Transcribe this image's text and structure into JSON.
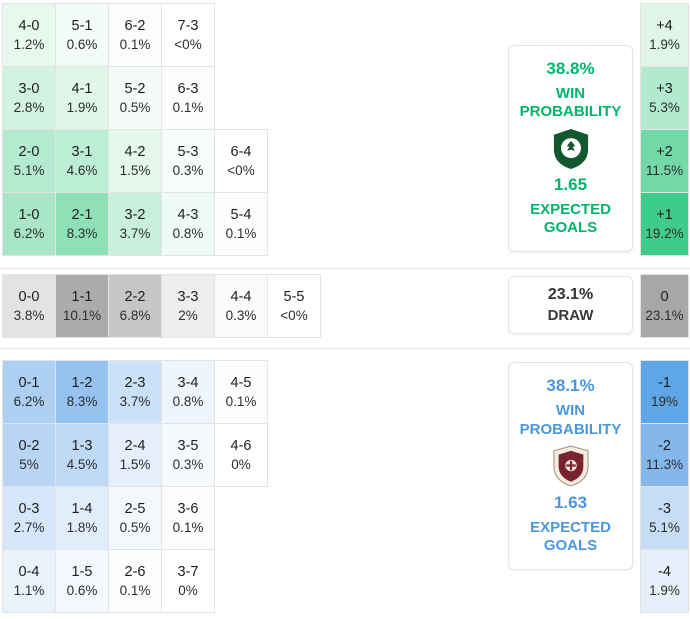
{
  "colors": {
    "home_accent": "#00b56b",
    "away_accent": "#4a97dd",
    "neutral_text": "#333333",
    "cell_border": "#e3e3e3"
  },
  "icons": {
    "home_crest": "home-team-crest",
    "away_crest": "away-team-crest"
  },
  "panels": {
    "home": {
      "win_probability": "38.8%",
      "win_label": "WIN PROBABILITY",
      "expected_goals": "1.65",
      "expected_label": "EXPECTED GOALS"
    },
    "draw": {
      "probability": "23.1%",
      "label": "DRAW"
    },
    "away": {
      "win_probability": "38.1%",
      "win_label": "WIN PROBABILITY",
      "expected_goals": "1.63",
      "expected_label": "EXPECTED GOALS"
    }
  },
  "chart_data": {
    "type": "heatmap",
    "home_win_rows": [
      [
        {
          "score": "4-0",
          "probability": "1.2%",
          "bg": "#e7f8ef"
        },
        {
          "score": "5-1",
          "probability": "0.6%",
          "bg": "#f2fbf6"
        },
        {
          "score": "6-2",
          "probability": "0.1%",
          "bg": "#fcfefd"
        },
        {
          "score": "7-3",
          "probability": "<0%",
          "bg": "#ffffff"
        }
      ],
      [
        {
          "score": "3-0",
          "probability": "2.8%",
          "bg": "#d2f2e2"
        },
        {
          "score": "4-1",
          "probability": "1.9%",
          "bg": "#dff6e9"
        },
        {
          "score": "5-2",
          "probability": "0.5%",
          "bg": "#f4fbf8"
        },
        {
          "score": "6-3",
          "probability": "0.1%",
          "bg": "#fcfefd"
        }
      ],
      [
        {
          "score": "2-0",
          "probability": "5.1%",
          "bg": "#b4ead0"
        },
        {
          "score": "3-1",
          "probability": "4.6%",
          "bg": "#bcedd5"
        },
        {
          "score": "4-2",
          "probability": "1.5%",
          "bg": "#e4f7ed"
        },
        {
          "score": "5-3",
          "probability": "0.3%",
          "bg": "#f7fdfa"
        },
        {
          "score": "6-4",
          "probability": "<0%",
          "bg": "#ffffff"
        }
      ],
      [
        {
          "score": "1-0",
          "probability": "6.2%",
          "bg": "#a9e6c8"
        },
        {
          "score": "2-1",
          "probability": "8.3%",
          "bg": "#8ee0b7"
        },
        {
          "score": "3-2",
          "probability": "3.7%",
          "bg": "#c7efdb"
        },
        {
          "score": "4-3",
          "probability": "0.8%",
          "bg": "#eefaf4"
        },
        {
          "score": "5-4",
          "probability": "0.1%",
          "bg": "#fcfefd"
        }
      ]
    ],
    "draw_row": [
      {
        "score": "0-0",
        "probability": "3.8%",
        "bg": "#e3e3e3"
      },
      {
        "score": "1-1",
        "probability": "10.1%",
        "bg": "#ababab"
      },
      {
        "score": "2-2",
        "probability": "6.8%",
        "bg": "#c6c6c6"
      },
      {
        "score": "3-3",
        "probability": "2%",
        "bg": "#eeeeee"
      },
      {
        "score": "4-4",
        "probability": "0.3%",
        "bg": "#fafafa"
      },
      {
        "score": "5-5",
        "probability": "<0%",
        "bg": "#ffffff"
      }
    ],
    "away_win_rows": [
      [
        {
          "score": "0-1",
          "probability": "6.2%",
          "bg": "#accff2"
        },
        {
          "score": "1-2",
          "probability": "8.3%",
          "bg": "#95c2ee"
        },
        {
          "score": "2-3",
          "probability": "3.7%",
          "bg": "#cbe1f7"
        },
        {
          "score": "3-4",
          "probability": "0.8%",
          "bg": "#eff5fc"
        },
        {
          "score": "4-5",
          "probability": "0.1%",
          "bg": "#fcfdfe"
        }
      ],
      [
        {
          "score": "0-2",
          "probability": "5%",
          "bg": "#b8d6f3"
        },
        {
          "score": "1-3",
          "probability": "4.5%",
          "bg": "#bedaf4"
        },
        {
          "score": "2-4",
          "probability": "1.5%",
          "bg": "#e5effb"
        },
        {
          "score": "3-5",
          "probability": "0.3%",
          "bg": "#f7fafd"
        },
        {
          "score": "4-6",
          "probability": "0%",
          "bg": "#ffffff"
        }
      ],
      [
        {
          "score": "0-3",
          "probability": "2.7%",
          "bg": "#d5e7f9"
        },
        {
          "score": "1-4",
          "probability": "1.8%",
          "bg": "#e1edfa"
        },
        {
          "score": "2-5",
          "probability": "0.5%",
          "bg": "#f4f8fd"
        },
        {
          "score": "3-6",
          "probability": "0.1%",
          "bg": "#fcfdfe"
        }
      ],
      [
        {
          "score": "0-4",
          "probability": "1.1%",
          "bg": "#eaf2fc"
        },
        {
          "score": "1-5",
          "probability": "0.6%",
          "bg": "#f2f8fd"
        },
        {
          "score": "2-6",
          "probability": "0.1%",
          "bg": "#fcfdfe"
        },
        {
          "score": "3-7",
          "probability": "0%",
          "bg": "#ffffff"
        }
      ]
    ],
    "goal_difference": [
      {
        "diff": "+4",
        "probability": "1.9%",
        "bg": "#dff6e9"
      },
      {
        "diff": "+3",
        "probability": "5.3%",
        "bg": "#b2ead0"
      },
      {
        "diff": "+2",
        "probability": "11.5%",
        "bg": "#72d8a8"
      },
      {
        "diff": "+1",
        "probability": "19.2%",
        "bg": "#3fcb8a"
      },
      {
        "diff": "0",
        "probability": "23.1%",
        "bg": "#a7a7a7"
      },
      {
        "diff": "-1",
        "probability": "19%",
        "bg": "#5ea6e6"
      },
      {
        "diff": "-2",
        "probability": "11.3%",
        "bg": "#84b8ec"
      },
      {
        "diff": "-3",
        "probability": "5.1%",
        "bg": "#c6ddf6"
      },
      {
        "diff": "-4",
        "probability": "1.9%",
        "bg": "#e6f0fb"
      }
    ]
  }
}
